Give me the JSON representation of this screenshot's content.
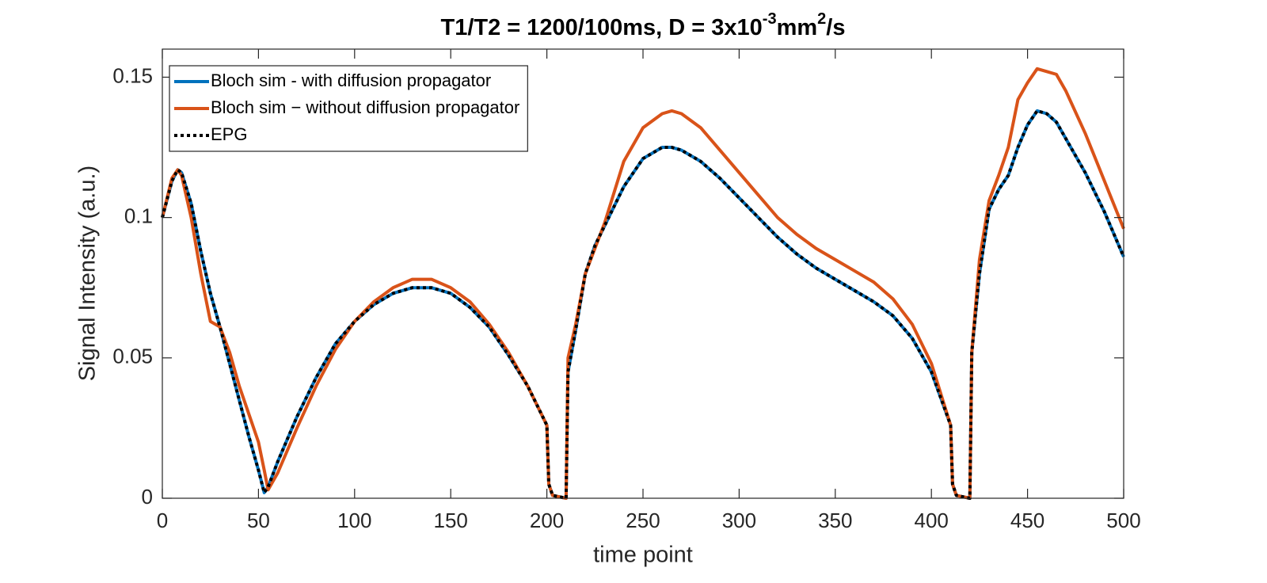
{
  "chart_data": {
    "type": "line",
    "title_parts": [
      "T1/T2 = 1200/100ms, D = 3x10",
      "-3",
      "mm",
      "2",
      "/s"
    ],
    "x_label": "time point",
    "y_label": "Signal Intensity (a.u.)",
    "x": [
      0,
      5,
      8,
      10,
      15,
      20,
      25,
      30,
      35,
      40,
      45,
      50,
      53,
      55,
      60,
      65,
      70,
      80,
      90,
      100,
      110,
      120,
      130,
      140,
      150,
      160,
      170,
      180,
      190,
      200,
      201,
      203,
      210,
      211,
      215,
      220,
      225,
      230,
      240,
      250,
      260,
      265,
      270,
      280,
      290,
      300,
      310,
      320,
      330,
      340,
      350,
      360,
      370,
      380,
      390,
      400,
      410,
      411,
      413,
      420,
      421,
      425,
      430,
      435,
      440,
      445,
      450,
      455,
      460,
      465,
      470,
      480,
      490,
      500
    ],
    "series": [
      {
        "name": "Bloch sim - with diffusion propagator",
        "color": "#0072bd",
        "style": "solid",
        "values": [
          0.1,
          0.113,
          0.117,
          0.116,
          0.105,
          0.088,
          0.073,
          0.061,
          0.048,
          0.035,
          0.022,
          0.01,
          0.002,
          0.004,
          0.013,
          0.021,
          0.029,
          0.043,
          0.055,
          0.063,
          0.069,
          0.073,
          0.075,
          0.075,
          0.073,
          0.068,
          0.061,
          0.051,
          0.04,
          0.026,
          0.005,
          0.001,
          0.0,
          0.045,
          0.06,
          0.08,
          0.09,
          0.097,
          0.111,
          0.121,
          0.125,
          0.125,
          0.124,
          0.12,
          0.114,
          0.107,
          0.1,
          0.093,
          0.087,
          0.082,
          0.078,
          0.074,
          0.07,
          0.065,
          0.057,
          0.045,
          0.026,
          0.005,
          0.001,
          0.0,
          0.052,
          0.08,
          0.103,
          0.11,
          0.115,
          0.125,
          0.133,
          0.138,
          0.137,
          0.134,
          0.128,
          0.116,
          0.102,
          0.086
        ]
      },
      {
        "name": "Bloch sim − without diffusion propagator",
        "color": "#d95319",
        "style": "solid",
        "values": [
          0.1,
          0.114,
          0.117,
          0.115,
          0.1,
          0.08,
          0.063,
          0.061,
          0.052,
          0.04,
          0.03,
          0.02,
          0.01,
          0.003,
          0.009,
          0.017,
          0.025,
          0.04,
          0.053,
          0.063,
          0.07,
          0.075,
          0.078,
          0.078,
          0.075,
          0.07,
          0.062,
          0.052,
          0.04,
          0.026,
          0.005,
          0.001,
          0.0,
          0.05,
          0.062,
          0.08,
          0.089,
          0.098,
          0.12,
          0.132,
          0.137,
          0.138,
          0.137,
          0.132,
          0.124,
          0.116,
          0.108,
          0.1,
          0.094,
          0.089,
          0.085,
          0.081,
          0.077,
          0.071,
          0.062,
          0.048,
          0.026,
          0.005,
          0.001,
          0.0,
          0.052,
          0.085,
          0.106,
          0.115,
          0.125,
          0.142,
          0.148,
          0.153,
          0.152,
          0.151,
          0.145,
          0.13,
          0.113,
          0.096
        ]
      },
      {
        "name": "EPG",
        "color": "#000000",
        "style": "dotted",
        "values": [
          0.1,
          0.113,
          0.117,
          0.116,
          0.105,
          0.088,
          0.073,
          0.061,
          0.048,
          0.035,
          0.022,
          0.01,
          0.002,
          0.004,
          0.013,
          0.021,
          0.029,
          0.043,
          0.055,
          0.063,
          0.069,
          0.073,
          0.075,
          0.075,
          0.073,
          0.068,
          0.061,
          0.051,
          0.04,
          0.026,
          0.005,
          0.001,
          0.0,
          0.045,
          0.06,
          0.08,
          0.09,
          0.097,
          0.111,
          0.121,
          0.125,
          0.125,
          0.124,
          0.12,
          0.114,
          0.107,
          0.1,
          0.093,
          0.087,
          0.082,
          0.078,
          0.074,
          0.07,
          0.065,
          0.057,
          0.045,
          0.026,
          0.005,
          0.001,
          0.0,
          0.052,
          0.08,
          0.103,
          0.11,
          0.115,
          0.125,
          0.133,
          0.138,
          0.137,
          0.134,
          0.128,
          0.116,
          0.102,
          0.086
        ]
      }
    ],
    "xlim": [
      0,
      500
    ],
    "xticks": [
      0,
      50,
      100,
      150,
      200,
      250,
      300,
      350,
      400,
      450,
      500
    ],
    "ylim": [
      0,
      0.16
    ],
    "yticks": [
      0,
      0.05,
      0.1,
      0.15
    ],
    "grid": false,
    "legend": "upper-left"
  }
}
